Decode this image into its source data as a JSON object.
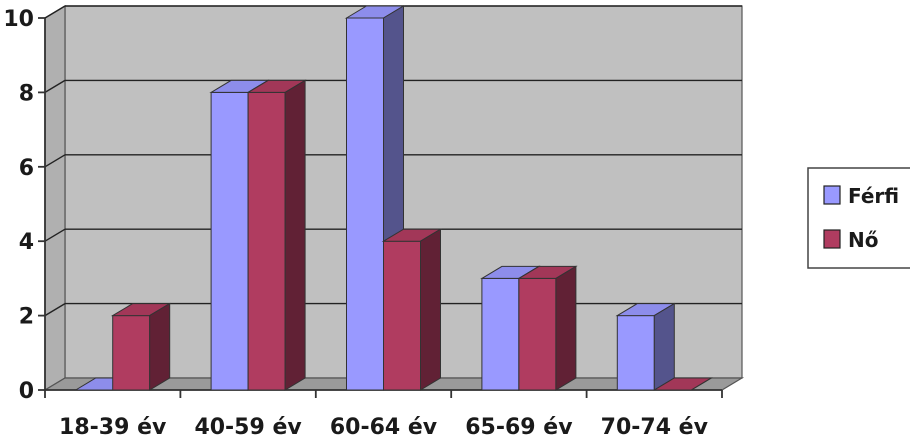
{
  "chart_data": {
    "type": "bar",
    "title": "",
    "xlabel": "",
    "ylabel": "",
    "categories": [
      "18-39 év",
      "40-59 év",
      "60-64 év",
      "65-69 év",
      "70-74 év"
    ],
    "series": [
      {
        "name": "Férfi",
        "values": [
          0,
          8,
          10,
          3,
          2
        ],
        "color": "#9999ff"
      },
      {
        "name": "Nő",
        "values": [
          2,
          8,
          4,
          3,
          0
        ],
        "color": "#b03c60"
      }
    ],
    "ylim": [
      0,
      10
    ],
    "y_ticks": [
      0,
      2,
      4,
      6,
      8,
      10
    ],
    "grid": true,
    "legend_position": "right",
    "style": "3d-clustered-bar",
    "wall_color": "#c0c0c0",
    "floor_color": "#9a9a9a"
  }
}
